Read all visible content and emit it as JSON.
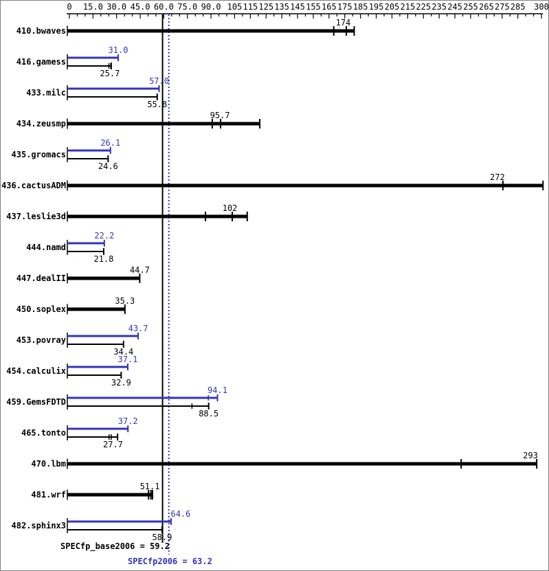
{
  "colors": {
    "base": "#000000",
    "peak": "#3333bb",
    "background": "#ffffff",
    "frame_border": "#808080"
  },
  "summary": {
    "base_label": "SPECfp_base2006 = 59.2",
    "peak_label": "SPECfp2006 = 63.2"
  },
  "chart_data": {
    "type": "bar",
    "orientation": "horizontal",
    "title": "",
    "xlabel": "",
    "ylabel": "",
    "xlim": [
      0,
      300
    ],
    "grid": false,
    "legend": "none",
    "axis": {
      "minor_tick_step": 5,
      "tick_labels": [
        {
          "v": 0,
          "t": "0"
        },
        {
          "v": 15,
          "t": "15.0"
        },
        {
          "v": 30,
          "t": "30.0"
        },
        {
          "v": 45,
          "t": "45.0"
        },
        {
          "v": 60,
          "t": "60.0"
        },
        {
          "v": 75,
          "t": "75.0"
        },
        {
          "v": 90,
          "t": "90.0"
        },
        {
          "v": 105,
          "t": "105"
        },
        {
          "v": 115,
          "t": "115"
        },
        {
          "v": 125,
          "t": "125"
        },
        {
          "v": 135,
          "t": "135"
        },
        {
          "v": 145,
          "t": "145"
        },
        {
          "v": 155,
          "t": "155"
        },
        {
          "v": 165,
          "t": "165"
        },
        {
          "v": 175,
          "t": "175"
        },
        {
          "v": 185,
          "t": "185"
        },
        {
          "v": 195,
          "t": "195"
        },
        {
          "v": 205,
          "t": "205"
        },
        {
          "v": 215,
          "t": "215"
        },
        {
          "v": 225,
          "t": "225"
        },
        {
          "v": 235,
          "t": "235"
        },
        {
          "v": 245,
          "t": "245"
        },
        {
          "v": 255,
          "t": "255"
        },
        {
          "v": 265,
          "t": "265"
        },
        {
          "v": 275,
          "t": "275"
        },
        {
          "v": 285,
          "t": "285"
        },
        {
          "v": 300,
          "t": "300"
        }
      ]
    },
    "reference_lines": [
      {
        "name": "SPECfp_base2006",
        "value": 59.2,
        "style": "solid",
        "color": "#000000"
      },
      {
        "name": "SPECfp2006",
        "value": 63.2,
        "style": "dotted",
        "color": "#3333bb"
      }
    ],
    "benchmarks": [
      {
        "label": "410.bwaves",
        "peak": null,
        "base": {
          "value": 174,
          "display": "174",
          "marks": [
            168,
            176
          ],
          "end": 181
        }
      },
      {
        "label": "416.gamess",
        "peak": {
          "value": 31.0,
          "display": "31.0",
          "marks": [],
          "end": 31.0
        },
        "base": {
          "value": 25.7,
          "display": "25.7",
          "marks": [
            25.1,
            26.3
          ],
          "end": 26.6
        }
      },
      {
        "label": "433.milc",
        "peak": {
          "value": 57.0,
          "display": "57.0",
          "marks": [],
          "end": 57.0
        },
        "base": {
          "value": 55.8,
          "display": "55.8",
          "marks": [],
          "end": 55.8
        }
      },
      {
        "label": "434.zeusmp",
        "peak": null,
        "base": {
          "value": 95.7,
          "display": "95.7",
          "marks": [
            90.8,
            96.1
          ],
          "end": 121
        }
      },
      {
        "label": "435.gromacs",
        "peak": {
          "value": 26.1,
          "display": "26.1",
          "marks": [],
          "end": 26.1
        },
        "base": {
          "value": 24.6,
          "display": "24.6",
          "marks": [],
          "end": 24.6
        }
      },
      {
        "label": "436.cactusADM",
        "peak": null,
        "base": {
          "value": 272,
          "display": "272",
          "marks": [
            275.5
          ],
          "end": 301
        }
      },
      {
        "label": "437.leslie3d",
        "peak": null,
        "base": {
          "value": 102,
          "display": "102",
          "marks": [
            86.5,
            103.5
          ],
          "end": 113
        }
      },
      {
        "label": "444.namd",
        "peak": {
          "value": 22.2,
          "display": "22.2",
          "marks": [],
          "end": 22.2
        },
        "base": {
          "value": 21.8,
          "display": "21.8",
          "marks": [],
          "end": 21.8
        }
      },
      {
        "label": "447.dealII",
        "peak": null,
        "base": {
          "value": 44.7,
          "display": "44.7",
          "marks": [],
          "end": 44.7
        }
      },
      {
        "label": "450.soplex",
        "peak": null,
        "base": {
          "value": 35.3,
          "display": "35.3",
          "marks": [],
          "end": 35.3
        }
      },
      {
        "label": "453.povray",
        "peak": {
          "value": 43.7,
          "display": "43.7",
          "marks": [],
          "end": 43.7
        },
        "base": {
          "value": 34.4,
          "display": "34.4",
          "marks": [],
          "end": 34.4
        }
      },
      {
        "label": "454.calculix",
        "peak": {
          "value": 37.1,
          "display": "37.1",
          "marks": [],
          "end": 37.1
        },
        "base": {
          "value": 32.9,
          "display": "32.9",
          "marks": [],
          "end": 32.9
        }
      },
      {
        "label": "459.GemsFDTD",
        "peak": {
          "value": 94.1,
          "display": "94.1",
          "marks": [
            88.3
          ],
          "end": 94.1
        },
        "base": {
          "value": 88.5,
          "display": "88.5",
          "marks": [
            77.9
          ],
          "end": 88.5
        }
      },
      {
        "label": "465.tonto",
        "peak": {
          "value": 37.2,
          "display": "37.2",
          "marks": [],
          "end": 37.2
        },
        "base": {
          "value": 27.7,
          "display": "27.7",
          "marks": [
            25.2,
            26.6
          ],
          "end": 30.6
        }
      },
      {
        "label": "470.lbm",
        "peak": null,
        "base": {
          "value": 293,
          "display": "293",
          "marks": [
            249
          ],
          "end": 297
        }
      },
      {
        "label": "481.wrf",
        "peak": null,
        "base": {
          "value": 51.1,
          "display": "51.1",
          "marks": [
            50.3,
            51.8
          ],
          "end": 52.8
        }
      },
      {
        "label": "482.sphinx3",
        "peak": {
          "value": 64.6,
          "display": "64.6",
          "marks": [],
          "end": 64.6,
          "label_dx": 14
        },
        "base": {
          "value": 58.9,
          "display": "58.9",
          "marks": [],
          "end": 58.9
        }
      }
    ]
  }
}
